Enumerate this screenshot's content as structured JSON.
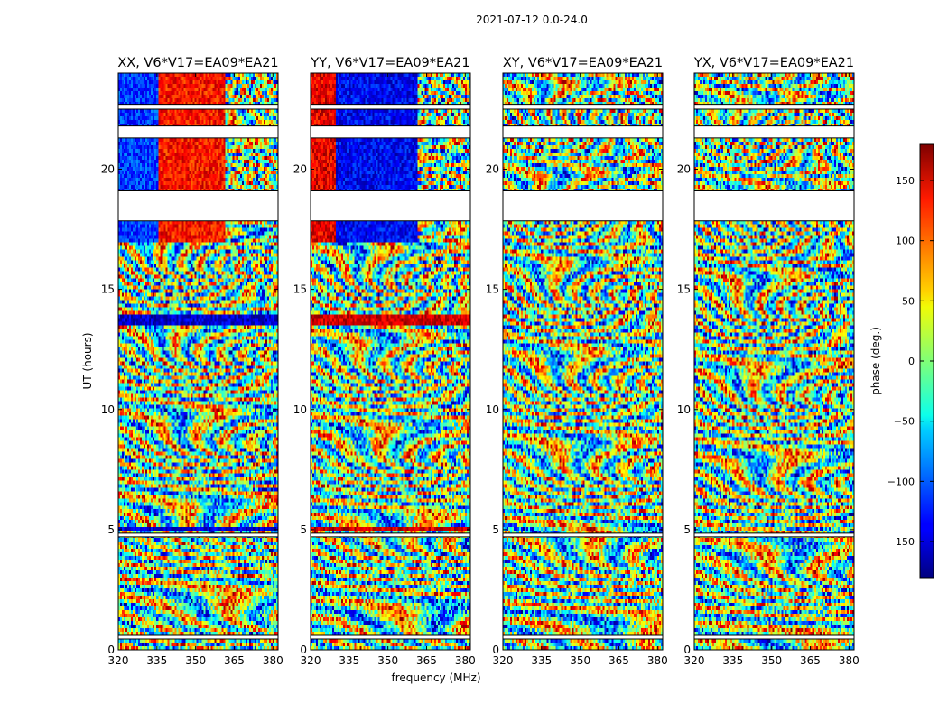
{
  "figure": {
    "suptitle": "2021-07-12 0.0-24.0",
    "xlabel": "frequency (MHz)",
    "ylabel": "UT (hours)"
  },
  "colorbar": {
    "label": "phase (deg.)",
    "range": [
      -180,
      180
    ],
    "ticks": [
      150,
      100,
      50,
      0,
      -50,
      -100,
      -150
    ],
    "tick_labels": [
      "150",
      "100",
      "50",
      "0",
      "−50",
      "−100",
      "−150"
    ],
    "colormap": "jet"
  },
  "chart_data": [
    {
      "type": "heatmap",
      "title": "XX, V6*V17=EA09*EA21",
      "polarization": "XX",
      "xlabel": "frequency (MHz)",
      "ylabel": "UT (hours)",
      "xlim": [
        320,
        382
      ],
      "ylim": [
        0,
        24
      ],
      "x_ticks": [
        320,
        335,
        350,
        365,
        380
      ],
      "y_ticks": [
        0,
        5,
        10,
        15,
        20
      ],
      "value": "phase (deg.)"
    },
    {
      "type": "heatmap",
      "title": "YY, V6*V17=EA09*EA21",
      "polarization": "YY",
      "xlabel": "frequency (MHz)",
      "ylabel": "UT (hours)",
      "xlim": [
        320,
        382
      ],
      "ylim": [
        0,
        24
      ],
      "x_ticks": [
        320,
        335,
        350,
        365,
        380
      ],
      "y_ticks": [
        0,
        5,
        10,
        15,
        20
      ],
      "value": "phase (deg.)"
    },
    {
      "type": "heatmap",
      "title": "XY, V6*V17=EA09*EA21",
      "polarization": "XY",
      "xlabel": "frequency (MHz)",
      "ylabel": "UT (hours)",
      "xlim": [
        320,
        382
      ],
      "ylim": [
        0,
        24
      ],
      "x_ticks": [
        320,
        335,
        350,
        365,
        380
      ],
      "y_ticks": [
        0,
        5,
        10,
        15,
        20
      ],
      "value": "phase (deg.)"
    },
    {
      "type": "heatmap",
      "title": "YX, V6*V17=EA09*EA21",
      "polarization": "YX",
      "xlabel": "frequency (MHz)",
      "ylabel": "UT (hours)",
      "xlim": [
        320,
        382
      ],
      "ylim": [
        0,
        24
      ],
      "x_ticks": [
        320,
        335,
        350,
        365,
        380
      ],
      "y_ticks": [
        0,
        5,
        10,
        15,
        20
      ],
      "value": "phase (deg.)"
    }
  ],
  "flagged_ut_ranges": [
    [
      17.85,
      19.1
    ],
    [
      21.3,
      21.8
    ],
    [
      22.5,
      22.7
    ],
    [
      0.45,
      0.6
    ],
    [
      4.7,
      4.85
    ]
  ]
}
